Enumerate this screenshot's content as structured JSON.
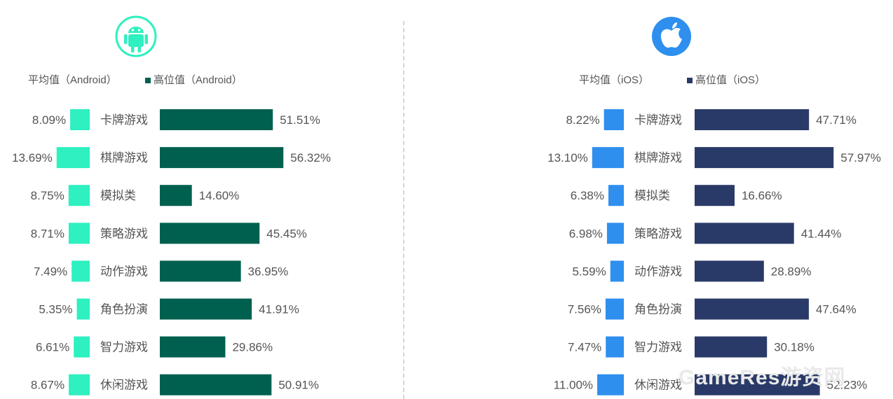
{
  "chart_data": [
    {
      "type": "bar",
      "categories": [
        "卡牌游戏",
        "棋牌游戏",
        "模拟类",
        "策略游戏",
        "动作游戏",
        "角色扮演",
        "智力游戏",
        "休闲游戏"
      ],
      "series": [
        {
          "name": "平均值（Android）",
          "values": [
            8.09,
            13.69,
            8.75,
            8.71,
            7.49,
            5.35,
            6.61,
            8.67
          ],
          "labels": [
            "8.09%",
            "13.69%",
            "8.75%",
            "8.71%",
            "7.49%",
            "5.35%",
            "6.61%",
            "8.67%"
          ]
        },
        {
          "name": "高位值（Android）",
          "values": [
            51.51,
            56.32,
            14.6,
            45.45,
            36.95,
            41.91,
            29.86,
            50.91
          ],
          "labels": [
            "51.51%",
            "56.32%",
            "14.60%",
            "45.45%",
            "36.95%",
            "41.91%",
            "29.86%",
            "50.91%"
          ]
        }
      ],
      "icon": "android-icon",
      "colors": {
        "avg": "#2ef0c0",
        "high": "#00604f"
      }
    },
    {
      "type": "bar",
      "categories": [
        "卡牌游戏",
        "棋牌游戏",
        "模拟类",
        "策略游戏",
        "动作游戏",
        "角色扮演",
        "智力游戏",
        "休闲游戏"
      ],
      "series": [
        {
          "name": "平均值（iOS）",
          "values": [
            8.22,
            13.1,
            6.38,
            6.98,
            5.59,
            7.56,
            7.47,
            11.0
          ],
          "labels": [
            "8.22%",
            "13.10%",
            "6.38%",
            "6.98%",
            "5.59%",
            "7.56%",
            "7.47%",
            "11.00%"
          ]
        },
        {
          "name": "高位值（iOS）",
          "values": [
            47.71,
            57.97,
            16.66,
            41.44,
            28.89,
            47.64,
            30.18,
            52.23
          ],
          "labels": [
            "47.71%",
            "57.97%",
            "16.66%",
            "41.44%",
            "28.89%",
            "47.64%",
            "30.18%",
            "52.23%"
          ]
        }
      ],
      "icon": "apple-icon",
      "colors": {
        "avg": "#2e8fef",
        "high": "#2a3a68"
      }
    }
  ],
  "watermark": "GameRes游资网"
}
